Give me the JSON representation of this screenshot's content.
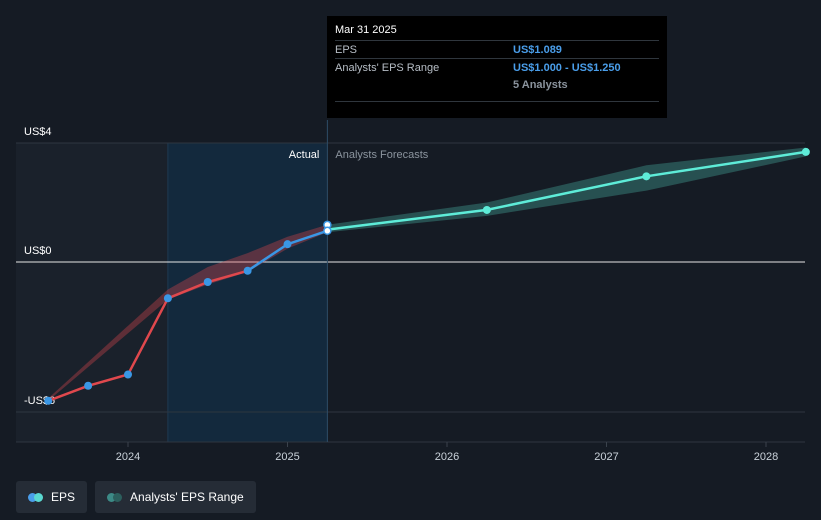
{
  "tooltip": {
    "date": "Mar 31 2025",
    "rows": [
      {
        "label": "EPS",
        "value": "US$1.089"
      },
      {
        "label": "Analysts' EPS Range",
        "value": "US$1.000 - US$1.250"
      }
    ],
    "analysts": "5 Analysts"
  },
  "legend": {
    "eps": {
      "label": "EPS",
      "colors": [
        "#4a9eea",
        "#5ad8d0"
      ]
    },
    "range": {
      "label": "Analysts' EPS Range",
      "colors": [
        "#3c8a86",
        "#2c5f5d"
      ]
    }
  },
  "chart_data": {
    "type": "line",
    "y_tick_labels": [
      {
        "value": 4,
        "label": "US$4"
      },
      {
        "value": 0,
        "label": "US$0"
      },
      {
        "value": -6,
        "label": "-US$6"
      }
    ],
    "x_tick_labels": [
      "2024",
      "2025",
      "2026",
      "2027",
      "2028"
    ],
    "ylim": [
      -6,
      4
    ],
    "xlim": [
      2023.45,
      2028.25
    ],
    "section_labels": {
      "actual": "Actual",
      "forecast": "Analysts Forecasts"
    },
    "present_x": 2025.25,
    "actual_eps_negative": [
      {
        "x": 2023.5,
        "y": -5.55
      },
      {
        "x": 2023.75,
        "y": -4.95
      },
      {
        "x": 2024.0,
        "y": -4.5
      },
      {
        "x": 2024.25,
        "y": -1.45
      }
    ],
    "actual_eps_positive": [
      {
        "x": 2024.25,
        "y": -1.45
      },
      {
        "x": 2024.5,
        "y": -0.8
      },
      {
        "x": 2024.75,
        "y": -0.35
      },
      {
        "x": 2025.0,
        "y": 0.6
      },
      {
        "x": 2025.25,
        "y": 1.05
      }
    ],
    "past_estimate_range": {
      "x": [
        2023.5,
        2024.25,
        2024.5,
        2024.75,
        2025.0,
        2025.25
      ],
      "low": [
        -5.55,
        -1.5,
        -0.9,
        -0.4,
        0.45,
        1.0
      ],
      "high": [
        -5.45,
        -1.1,
        -0.2,
        0.3,
        0.85,
        1.25
      ]
    },
    "forecast": [
      {
        "x": 2025.25,
        "y": 1.089
      },
      {
        "x": 2026.25,
        "y": 1.75
      },
      {
        "x": 2027.25,
        "y": 2.88
      },
      {
        "x": 2028.25,
        "y": 3.7
      }
    ],
    "forecast_range": {
      "x": [
        2025.25,
        2026.25,
        2027.25,
        2028.25
      ],
      "low": [
        1.0,
        1.55,
        2.4,
        3.55
      ],
      "high": [
        1.25,
        2.0,
        3.25,
        3.85
      ]
    },
    "colors": {
      "eps_negative": "#e0484d",
      "eps_positive": "#3a97e5",
      "forecast": "#5eecd8",
      "forecast_band": "#2e6360",
      "past_band": "#e0484d"
    }
  }
}
